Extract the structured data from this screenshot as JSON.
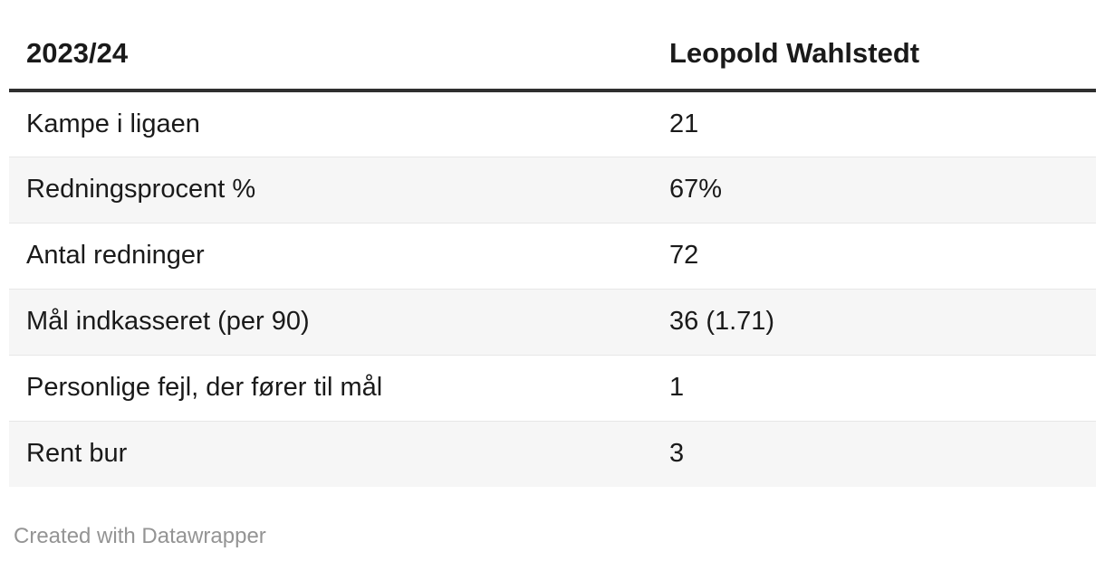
{
  "chart_data": {
    "type": "table",
    "title": "",
    "columns": [
      "2023/24",
      "Leopold Wahlstedt"
    ],
    "rows": [
      [
        "Kampe i ligaen",
        "21"
      ],
      [
        "Redningsprocent %",
        "67%"
      ],
      [
        "Antal redninger",
        "72"
      ],
      [
        "Mål indkasseret (per 90)",
        "36 (1.71)"
      ],
      [
        "Personlige fejl, der fører til mål",
        "1"
      ],
      [
        "Rent bur",
        "3"
      ]
    ]
  },
  "table": {
    "header": {
      "season": "2023/24",
      "player": "Leopold Wahlstedt"
    },
    "rows": [
      {
        "label": "Kampe i ligaen",
        "value": "21"
      },
      {
        "label": "Redningsprocent %",
        "value": "67%"
      },
      {
        "label": "Antal redninger",
        "value": "72"
      },
      {
        "label": "Mål indkasseret (per 90)",
        "value": "36 (1.71)"
      },
      {
        "label": "Personlige fejl, der fører til mål",
        "value": "1"
      },
      {
        "label": "Rent bur",
        "value": "3"
      }
    ]
  },
  "footer": {
    "attribution": "Created with Datawrapper"
  },
  "colors": {
    "header_rule": "#2f2f2f",
    "text": "#1a1a1a",
    "row_alt_bg": "#f6f6f6",
    "row_separator": "#e7e7e7",
    "footer_text": "#949494",
    "background": "#ffffff"
  }
}
